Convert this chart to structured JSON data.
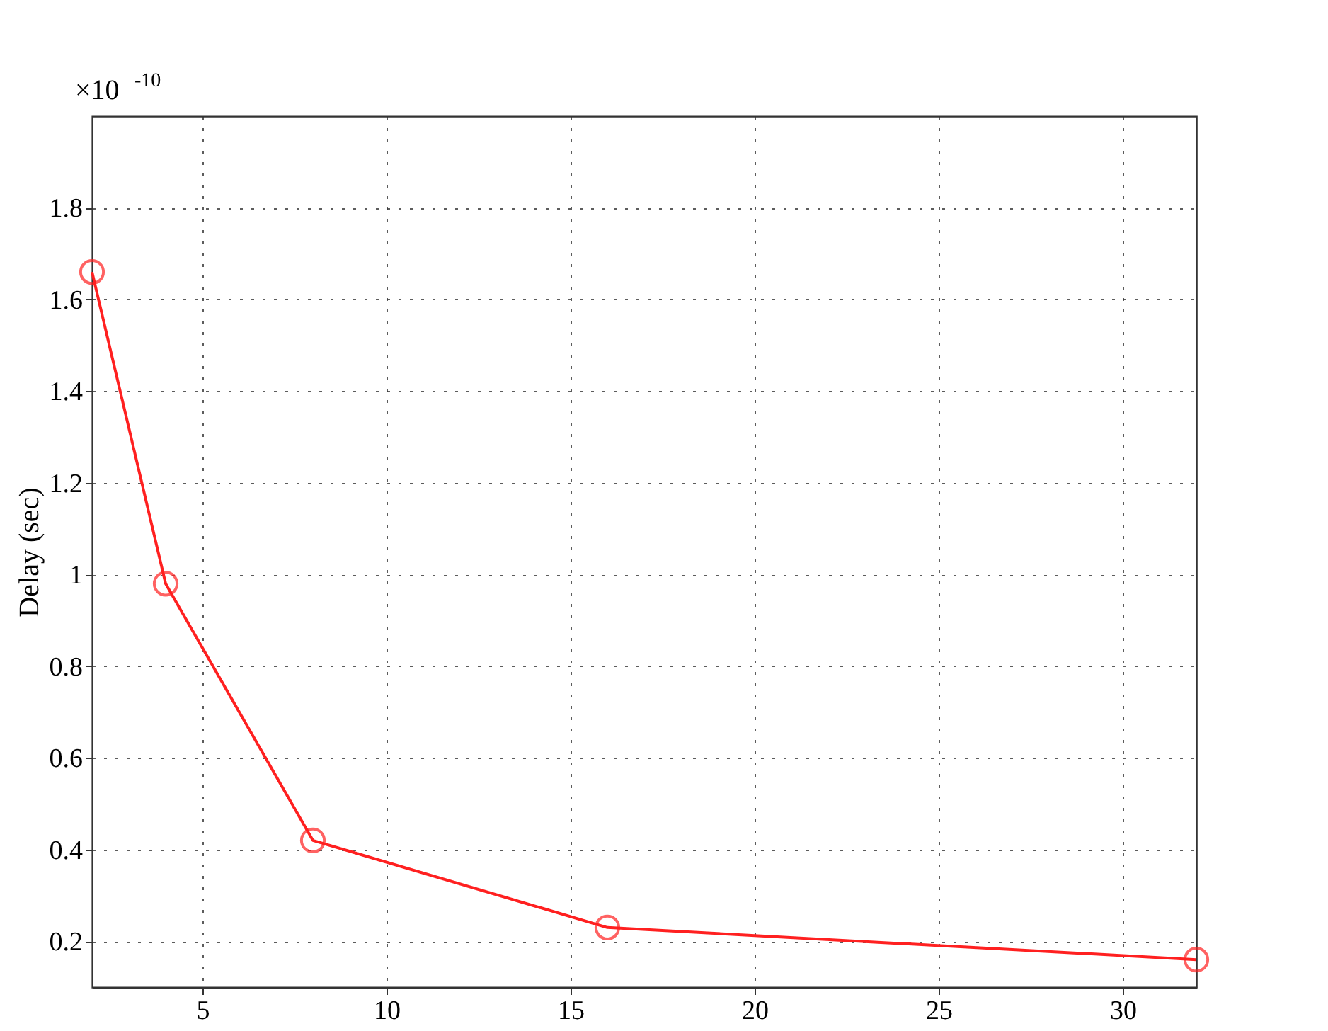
{
  "chart_data": {
    "type": "line",
    "ylabel": "Delay (sec)",
    "annotations": [
      "×10$^{-10}$"
    ],
    "x": [
      2,
      4,
      8,
      16,
      32
    ],
    "series": [
      {
        "color": "#ff2020",
        "values": [
          1.66,
          0.98,
          0.42,
          0.23,
          0.16
        ]
      }
    ],
    "xlim": [
      2,
      32
    ],
    "xticks": [
      5,
      10,
      15,
      20,
      25,
      30
    ],
    "ylim": [
      0.1,
      2.0
    ],
    "yticks": [
      0.2,
      0.4,
      0.6,
      0.8,
      1,
      1.2,
      1.4,
      1.6,
      1.8
    ],
    "grid": true,
    "marker": "circle",
    "line_style": "solid"
  }
}
